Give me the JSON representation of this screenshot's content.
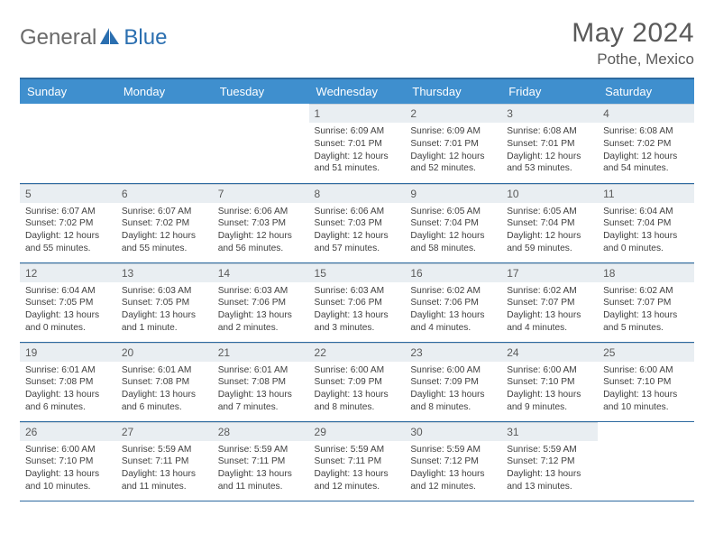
{
  "brand": {
    "part1": "General",
    "part2": "Blue"
  },
  "title": "May 2024",
  "location": "Pothe, Mexico",
  "colors": {
    "header_bg": "#3f8fce",
    "header_border": "#2d6aa0",
    "daynum_bg": "#e9eef2",
    "text": "#404040",
    "brand_blue": "#2b6fb0"
  },
  "weekdays": [
    "Sunday",
    "Monday",
    "Tuesday",
    "Wednesday",
    "Thursday",
    "Friday",
    "Saturday"
  ],
  "weeks": [
    [
      null,
      null,
      null,
      {
        "n": "1",
        "sr": "6:09 AM",
        "ss": "7:01 PM",
        "dl": "12 hours and 51 minutes."
      },
      {
        "n": "2",
        "sr": "6:09 AM",
        "ss": "7:01 PM",
        "dl": "12 hours and 52 minutes."
      },
      {
        "n": "3",
        "sr": "6:08 AM",
        "ss": "7:01 PM",
        "dl": "12 hours and 53 minutes."
      },
      {
        "n": "4",
        "sr": "6:08 AM",
        "ss": "7:02 PM",
        "dl": "12 hours and 54 minutes."
      }
    ],
    [
      {
        "n": "5",
        "sr": "6:07 AM",
        "ss": "7:02 PM",
        "dl": "12 hours and 55 minutes."
      },
      {
        "n": "6",
        "sr": "6:07 AM",
        "ss": "7:02 PM",
        "dl": "12 hours and 55 minutes."
      },
      {
        "n": "7",
        "sr": "6:06 AM",
        "ss": "7:03 PM",
        "dl": "12 hours and 56 minutes."
      },
      {
        "n": "8",
        "sr": "6:06 AM",
        "ss": "7:03 PM",
        "dl": "12 hours and 57 minutes."
      },
      {
        "n": "9",
        "sr": "6:05 AM",
        "ss": "7:04 PM",
        "dl": "12 hours and 58 minutes."
      },
      {
        "n": "10",
        "sr": "6:05 AM",
        "ss": "7:04 PM",
        "dl": "12 hours and 59 minutes."
      },
      {
        "n": "11",
        "sr": "6:04 AM",
        "ss": "7:04 PM",
        "dl": "13 hours and 0 minutes."
      }
    ],
    [
      {
        "n": "12",
        "sr": "6:04 AM",
        "ss": "7:05 PM",
        "dl": "13 hours and 0 minutes."
      },
      {
        "n": "13",
        "sr": "6:03 AM",
        "ss": "7:05 PM",
        "dl": "13 hours and 1 minute."
      },
      {
        "n": "14",
        "sr": "6:03 AM",
        "ss": "7:06 PM",
        "dl": "13 hours and 2 minutes."
      },
      {
        "n": "15",
        "sr": "6:03 AM",
        "ss": "7:06 PM",
        "dl": "13 hours and 3 minutes."
      },
      {
        "n": "16",
        "sr": "6:02 AM",
        "ss": "7:06 PM",
        "dl": "13 hours and 4 minutes."
      },
      {
        "n": "17",
        "sr": "6:02 AM",
        "ss": "7:07 PM",
        "dl": "13 hours and 4 minutes."
      },
      {
        "n": "18",
        "sr": "6:02 AM",
        "ss": "7:07 PM",
        "dl": "13 hours and 5 minutes."
      }
    ],
    [
      {
        "n": "19",
        "sr": "6:01 AM",
        "ss": "7:08 PM",
        "dl": "13 hours and 6 minutes."
      },
      {
        "n": "20",
        "sr": "6:01 AM",
        "ss": "7:08 PM",
        "dl": "13 hours and 6 minutes."
      },
      {
        "n": "21",
        "sr": "6:01 AM",
        "ss": "7:08 PM",
        "dl": "13 hours and 7 minutes."
      },
      {
        "n": "22",
        "sr": "6:00 AM",
        "ss": "7:09 PM",
        "dl": "13 hours and 8 minutes."
      },
      {
        "n": "23",
        "sr": "6:00 AM",
        "ss": "7:09 PM",
        "dl": "13 hours and 8 minutes."
      },
      {
        "n": "24",
        "sr": "6:00 AM",
        "ss": "7:10 PM",
        "dl": "13 hours and 9 minutes."
      },
      {
        "n": "25",
        "sr": "6:00 AM",
        "ss": "7:10 PM",
        "dl": "13 hours and 10 minutes."
      }
    ],
    [
      {
        "n": "26",
        "sr": "6:00 AM",
        "ss": "7:10 PM",
        "dl": "13 hours and 10 minutes."
      },
      {
        "n": "27",
        "sr": "5:59 AM",
        "ss": "7:11 PM",
        "dl": "13 hours and 11 minutes."
      },
      {
        "n": "28",
        "sr": "5:59 AM",
        "ss": "7:11 PM",
        "dl": "13 hours and 11 minutes."
      },
      {
        "n": "29",
        "sr": "5:59 AM",
        "ss": "7:11 PM",
        "dl": "13 hours and 12 minutes."
      },
      {
        "n": "30",
        "sr": "5:59 AM",
        "ss": "7:12 PM",
        "dl": "13 hours and 12 minutes."
      },
      {
        "n": "31",
        "sr": "5:59 AM",
        "ss": "7:12 PM",
        "dl": "13 hours and 13 minutes."
      },
      null
    ]
  ],
  "labels": {
    "sunrise": "Sunrise:",
    "sunset": "Sunset:",
    "daylight": "Daylight:"
  }
}
